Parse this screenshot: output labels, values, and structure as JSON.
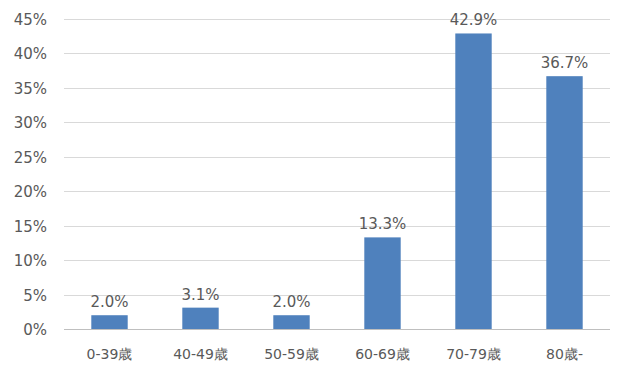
{
  "chart_data": {
    "type": "bar",
    "categories": [
      "0-39歳",
      "40-49歳",
      "50-59歳",
      "60-69歳",
      "70-79歳",
      "80歳-"
    ],
    "values": [
      2.0,
      3.1,
      2.0,
      13.3,
      42.9,
      36.7
    ],
    "value_labels": [
      "2.0%",
      "3.1%",
      "2.0%",
      "13.3%",
      "42.9%",
      "36.7%"
    ],
    "color": "#4f81bd",
    "ylim": [
      0,
      45
    ],
    "yticks": [
      {
        "value": 0,
        "label": "0%"
      },
      {
        "value": 5,
        "label": "5%"
      },
      {
        "value": 10,
        "label": "10%"
      },
      {
        "value": 15,
        "label": "15%"
      },
      {
        "value": 20,
        "label": "20%"
      },
      {
        "value": 25,
        "label": "25%"
      },
      {
        "value": 30,
        "label": "30%"
      },
      {
        "value": 35,
        "label": "35%"
      },
      {
        "value": 40,
        "label": "40%"
      },
      {
        "value": 45,
        "label": "45%"
      }
    ],
    "grid": true,
    "data_labels": true
  }
}
